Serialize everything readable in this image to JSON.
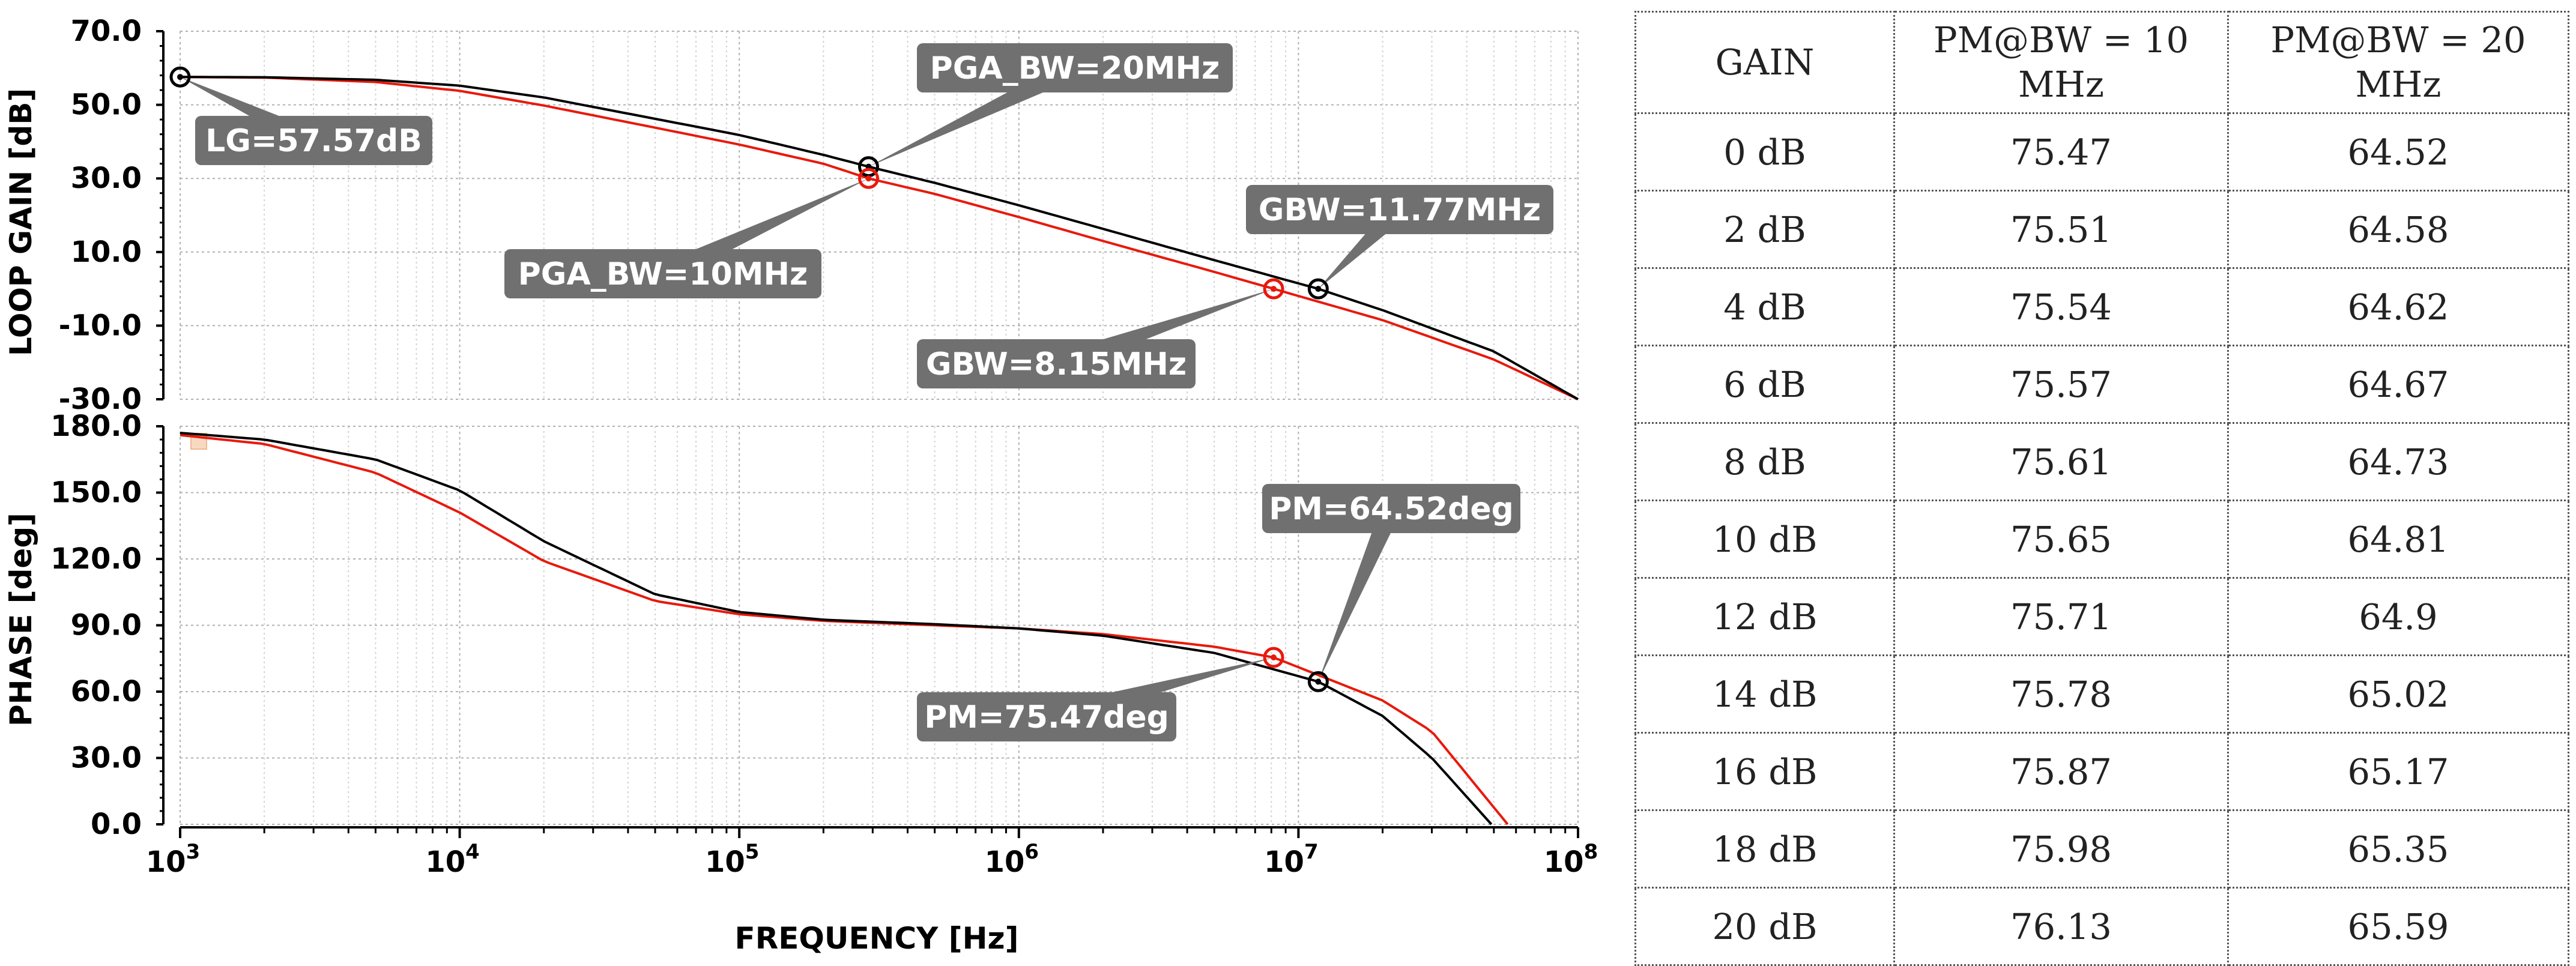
{
  "chart_data": [
    {
      "type": "line",
      "name": "loop-gain",
      "ylabel": "LOOP GAIN [dB]",
      "xscale": "log",
      "xlim": [
        1000,
        100000000
      ],
      "ylim": [
        -30,
        70
      ],
      "yticks": [
        "70.0",
        "50.0",
        "30.0",
        "10.0",
        "-10.0",
        "-30.0"
      ],
      "grid": true,
      "series": [
        {
          "name": "PGA_BW=20MHz",
          "color": "#000000",
          "x": [
            1000,
            2000,
            5000,
            10000,
            20000,
            50000,
            100000,
            200000,
            290000,
            500000,
            1000000,
            2000000,
            5000000,
            11770000,
            20000000,
            50000000,
            100000000
          ],
          "y": [
            57.57,
            57.5,
            56.8,
            55.2,
            52,
            46.2,
            41.8,
            36.4,
            33.2,
            28.8,
            22.7,
            16.3,
            7.8,
            0,
            -5.8,
            -17,
            -30
          ]
        },
        {
          "name": "PGA_BW=10MHz",
          "color": "#e8190c",
          "x": [
            1000,
            2000,
            5000,
            10000,
            20000,
            50000,
            100000,
            200000,
            290000,
            500000,
            1000000,
            2000000,
            5000000,
            8150000,
            20000000,
            50000000,
            100000000
          ],
          "y": [
            57.57,
            57.4,
            56.2,
            53.8,
            49.8,
            43.8,
            39.2,
            34,
            30,
            25.8,
            19.5,
            13,
            4.6,
            0,
            -8.5,
            -19.2,
            -30
          ]
        }
      ],
      "annotations": [
        {
          "text": "LG=57.57dB",
          "x": 1000,
          "y": 57.57,
          "series": "PGA_BW=20MHz"
        },
        {
          "text": "PGA_BW=20MHz",
          "x": 290000,
          "y": 33.2,
          "series": "PGA_BW=20MHz"
        },
        {
          "text": "PGA_BW=10MHz",
          "x": 290000,
          "y": 30,
          "series": "PGA_BW=10MHz"
        },
        {
          "text": "GBW=11.77MHz",
          "x": 11770000,
          "y": 0,
          "series": "PGA_BW=20MHz"
        },
        {
          "text": "GBW=8.15MHz",
          "x": 8150000,
          "y": 0,
          "series": "PGA_BW=10MHz"
        }
      ]
    },
    {
      "type": "line",
      "name": "phase",
      "ylabel": "PHASE [deg]",
      "xlabel": "FREQUENCY [Hz]",
      "xscale": "log",
      "xlim": [
        1000,
        100000000
      ],
      "ylim": [
        0,
        180
      ],
      "yticks": [
        "180.0",
        "150.0",
        "120.0",
        "90.0",
        "60.0",
        "30.0",
        "0.0"
      ],
      "xticks": [
        {
          "base": "10",
          "exp": "3",
          "value": 1000
        },
        {
          "base": "10",
          "exp": "4",
          "value": 10000
        },
        {
          "base": "10",
          "exp": "5",
          "value": 100000
        },
        {
          "base": "10",
          "exp": "6",
          "value": 1000000
        },
        {
          "base": "10",
          "exp": "7",
          "value": 10000000
        },
        {
          "base": "10",
          "exp": "8",
          "value": 100000000
        }
      ],
      "grid": true,
      "series": [
        {
          "name": "PGA_BW=20MHz",
          "color": "#000000",
          "x": [
            1000,
            2000,
            5000,
            10000,
            20000,
            50000,
            100000,
            200000,
            500000,
            1000000,
            2000000,
            5000000,
            11770000,
            20000000,
            30000000,
            49000000
          ],
          "y": [
            177,
            174,
            165,
            151,
            128,
            104,
            96,
            92.5,
            90.5,
            88.6,
            85.3,
            77.5,
            64.52,
            49,
            30,
            0
          ]
        },
        {
          "name": "PGA_BW=10MHz",
          "color": "#e8190c",
          "x": [
            1000,
            2000,
            5000,
            10000,
            20000,
            50000,
            100000,
            200000,
            500000,
            1000000,
            2000000,
            5000000,
            8150000,
            20000000,
            30000000,
            56000000
          ],
          "y": [
            176,
            172,
            159,
            141,
            119,
            101,
            95,
            92,
            90,
            88.6,
            86,
            80.3,
            75.47,
            56,
            42,
            0
          ]
        }
      ],
      "annotations": [
        {
          "text": "PM=64.52deg",
          "x": 11770000,
          "y": 64.52,
          "series": "PGA_BW=20MHz"
        },
        {
          "text": "PM=75.47deg",
          "x": 8150000,
          "y": 75.47,
          "series": "PGA_BW=10MHz"
        }
      ]
    },
    {
      "type": "table",
      "columns": [
        "GAIN",
        "PM@BW = 10 MHz",
        "PM@BW = 20 MHz"
      ],
      "rows": [
        [
          "0 dB",
          "75.47",
          "64.52"
        ],
        [
          "2 dB",
          "75.51",
          "64.58"
        ],
        [
          "4 dB",
          "75.54",
          "64.62"
        ],
        [
          "6 dB",
          "75.57",
          "64.67"
        ],
        [
          "8 dB",
          "75.61",
          "64.73"
        ],
        [
          "10 dB",
          "75.65",
          "64.81"
        ],
        [
          "12 dB",
          "75.71",
          "64.9"
        ],
        [
          "14 dB",
          "75.78",
          "65.02"
        ],
        [
          "16 dB",
          "75.87",
          "65.17"
        ],
        [
          "18 dB",
          "75.98",
          "65.35"
        ],
        [
          "20 dB",
          "76.13",
          "65.59"
        ]
      ]
    }
  ]
}
